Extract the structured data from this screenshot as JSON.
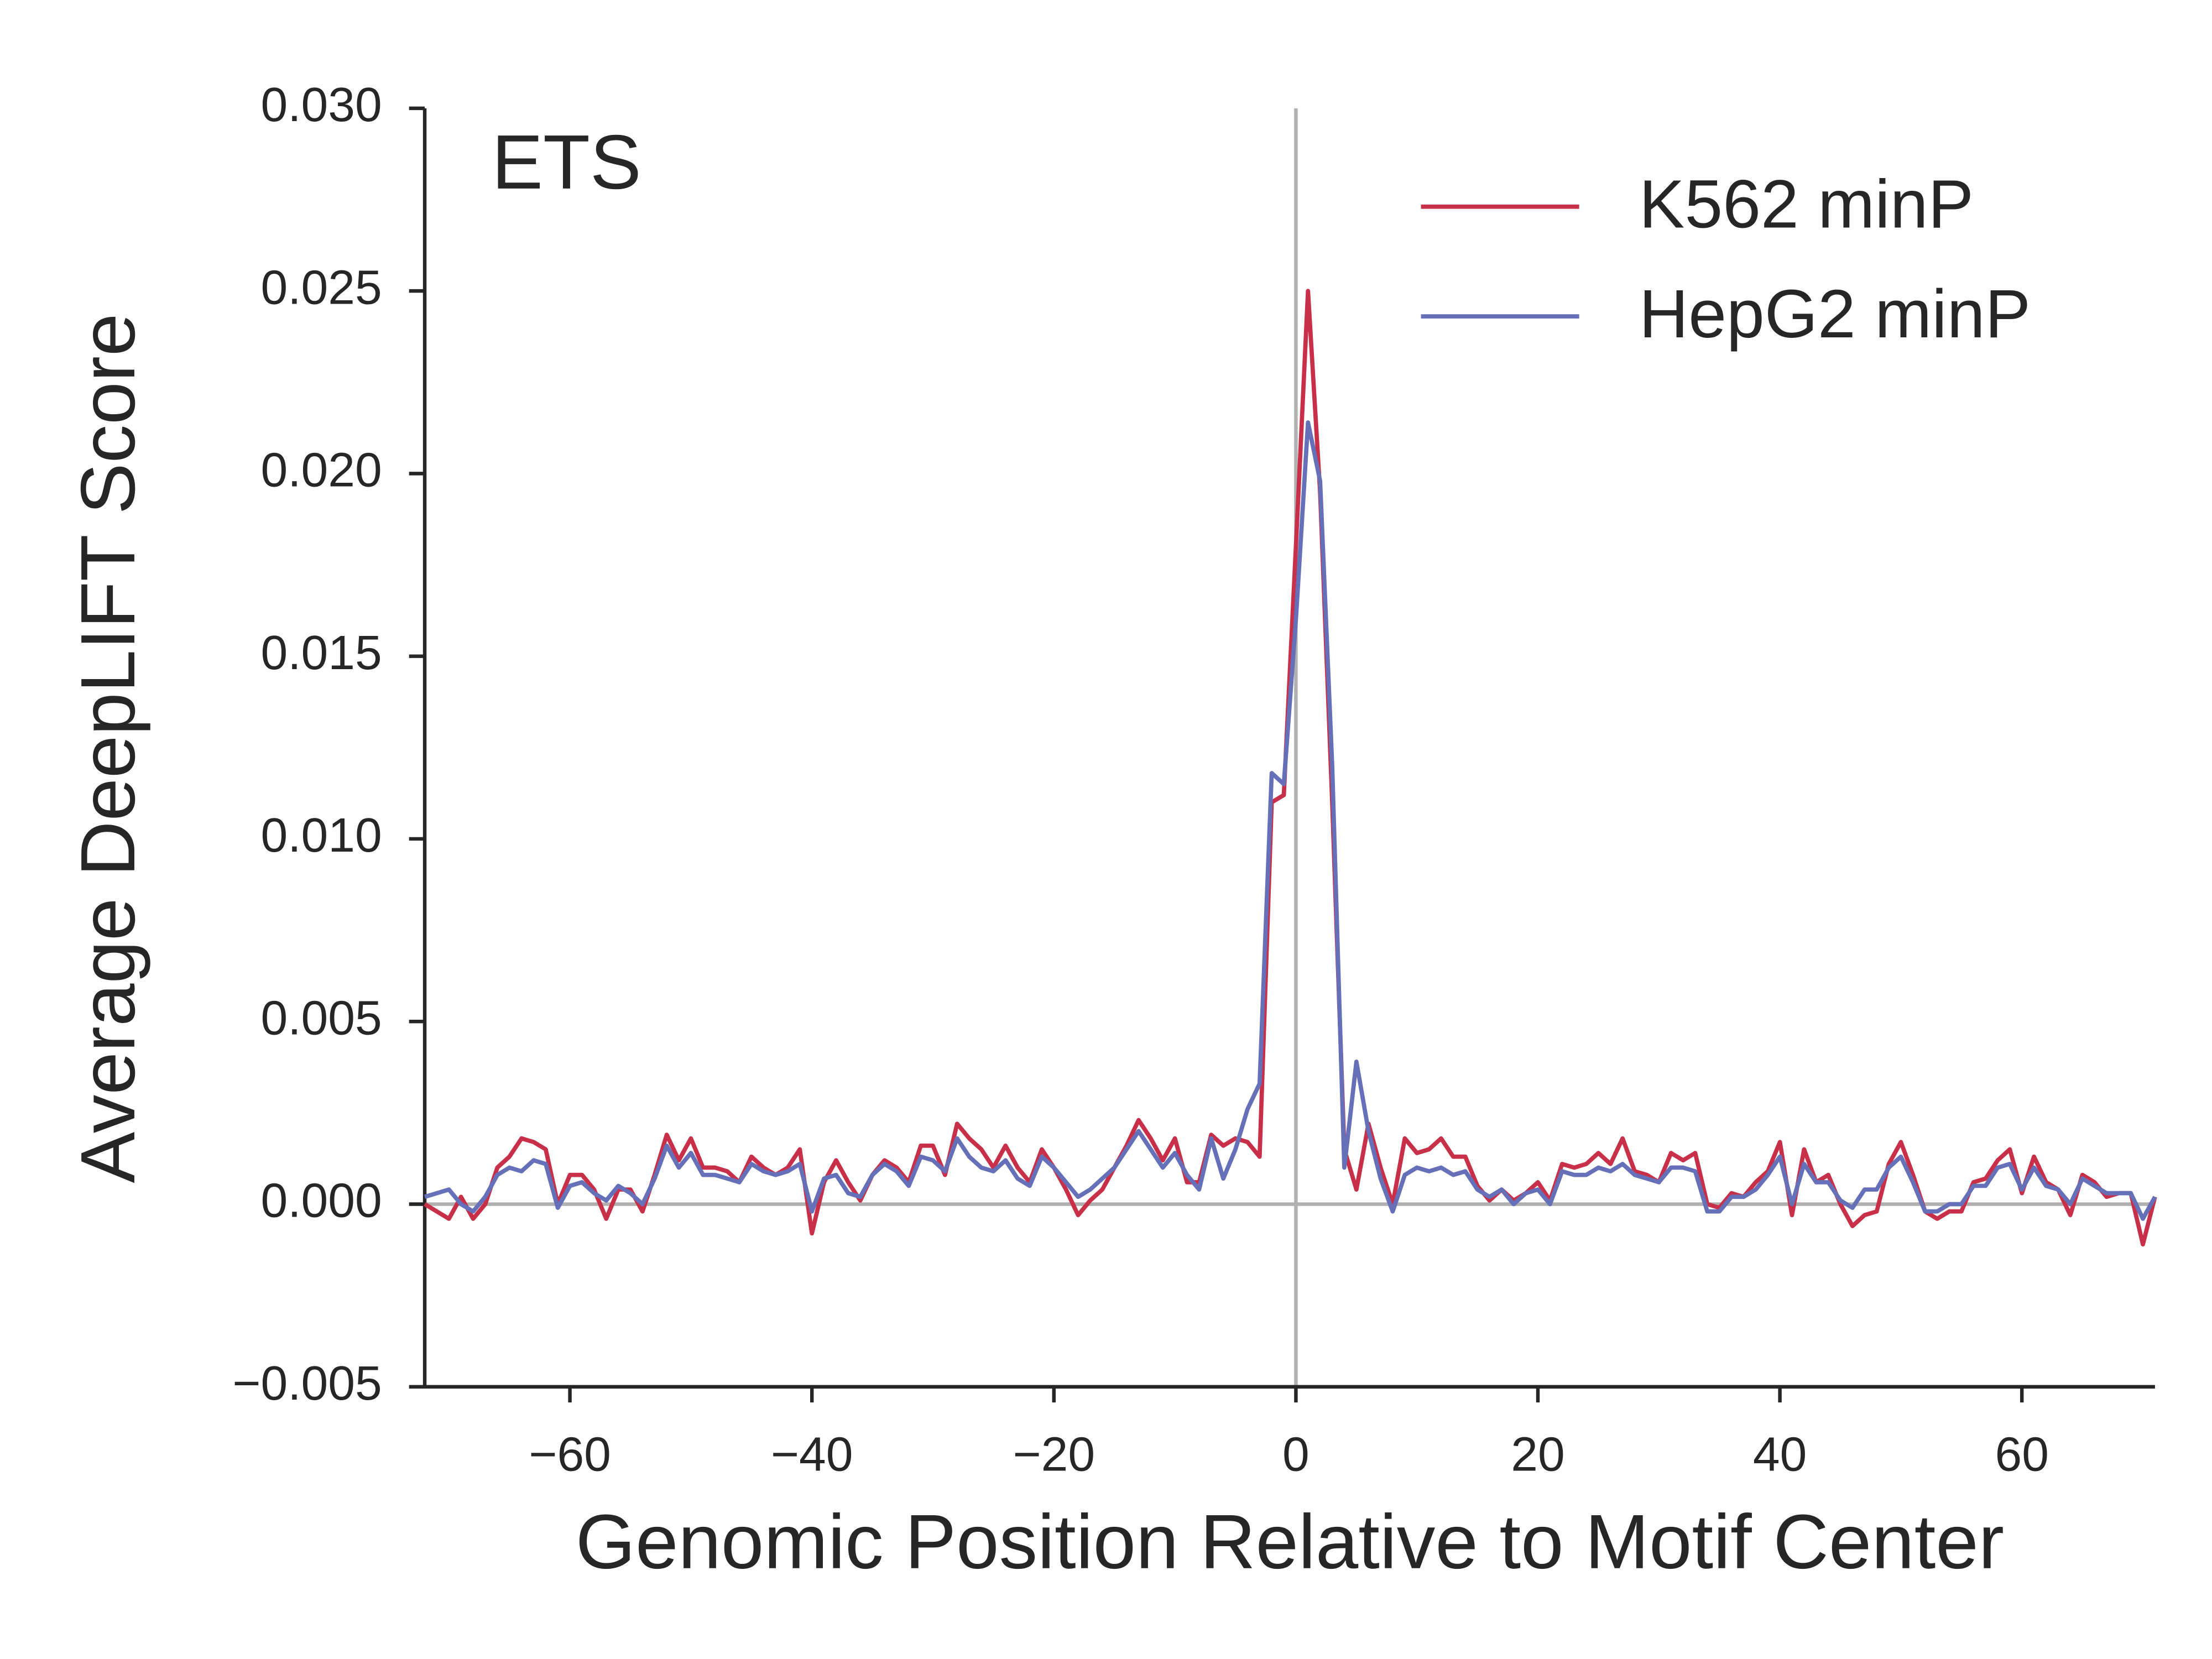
{
  "chart_data": {
    "type": "line",
    "annotation": "ETS",
    "x_label": "Genomic Position Relative to Motif Center",
    "y_label": "Average DeepLIFT Score",
    "x": [
      -72,
      -71,
      -70,
      -69,
      -68,
      -67,
      -66,
      -65,
      -64,
      -63,
      -62,
      -61,
      -60,
      -59,
      -58,
      -57,
      -56,
      -55,
      -54,
      -53,
      -52,
      -51,
      -50,
      -49,
      -48,
      -47,
      -46,
      -45,
      -44,
      -43,
      -42,
      -41,
      -40,
      -39,
      -38,
      -37,
      -36,
      -35,
      -34,
      -33,
      -32,
      -31,
      -30,
      -29,
      -28,
      -27,
      -26,
      -25,
      -24,
      -23,
      -22,
      -21,
      -20,
      -19,
      -18,
      -17,
      -16,
      -15,
      -14,
      -13,
      -12,
      -11,
      -10,
      -9,
      -8,
      -7,
      -6,
      -5,
      -4,
      -3,
      -2,
      -1,
      0,
      1,
      2,
      3,
      4,
      5,
      6,
      7,
      8,
      9,
      10,
      11,
      12,
      13,
      14,
      15,
      16,
      17,
      18,
      19,
      20,
      21,
      22,
      23,
      24,
      25,
      26,
      27,
      28,
      29,
      30,
      31,
      32,
      33,
      34,
      35,
      36,
      37,
      38,
      39,
      40,
      41,
      42,
      43,
      44,
      45,
      46,
      47,
      48,
      49,
      50,
      51,
      52,
      53,
      54,
      55,
      56,
      57,
      58,
      59,
      60,
      61,
      62,
      63,
      64,
      65,
      66,
      67,
      68,
      69,
      70,
      71
    ],
    "series": [
      {
        "name": "K562 minP",
        "color": "#c8304a",
        "values": [
          0.0,
          -0.0002,
          -0.0004,
          0.0002,
          -0.0004,
          0.0,
          0.001,
          0.0013,
          0.0018,
          0.0017,
          0.0015,
          0.0,
          0.0008,
          0.0008,
          0.0004,
          -0.0004,
          0.0004,
          0.0004,
          -0.0002,
          0.0008,
          0.0019,
          0.0012,
          0.0018,
          0.001,
          0.001,
          0.0009,
          0.0006,
          0.0013,
          0.001,
          0.0008,
          0.001,
          0.0015,
          -0.0008,
          0.0006,
          0.0012,
          0.0006,
          0.0001,
          0.0008,
          0.0012,
          0.001,
          0.0006,
          0.0016,
          0.0016,
          0.0008,
          0.0022,
          0.0018,
          0.0015,
          0.001,
          0.0016,
          0.001,
          0.0006,
          0.0015,
          0.001,
          0.0004,
          -0.0003,
          0.0001,
          0.0004,
          0.001,
          0.0016,
          0.0023,
          0.0018,
          0.0012,
          0.0018,
          0.0006,
          0.0006,
          0.0019,
          0.0016,
          0.0018,
          0.0017,
          0.0013,
          0.011,
          0.0112,
          0.018,
          0.025,
          0.0195,
          0.011,
          0.0015,
          0.0004,
          0.0022,
          0.001,
          0.0,
          0.0018,
          0.0014,
          0.0015,
          0.0018,
          0.0013,
          0.0013,
          0.0005,
          0.0001,
          0.0004,
          0.0001,
          0.0003,
          0.0006,
          0.0001,
          0.0011,
          0.001,
          0.0011,
          0.0014,
          0.0011,
          0.0018,
          0.0009,
          0.0008,
          0.0006,
          0.0014,
          0.0012,
          0.0014,
          0.0,
          -0.0001,
          0.0003,
          0.0002,
          0.0006,
          0.0009,
          0.0017,
          -0.0003,
          0.0015,
          0.0006,
          0.0008,
          0.0,
          -0.0006,
          -0.0003,
          -0.0002,
          0.0011,
          0.0017,
          0.0008,
          -0.0002,
          -0.0004,
          -0.0002,
          -0.0002,
          0.0006,
          0.0007,
          0.0012,
          0.0015,
          0.0003,
          0.0013,
          0.0006,
          0.0004,
          -0.0003,
          0.0008,
          0.0006,
          0.0002,
          0.0003,
          0.0003,
          -0.0011,
          0.0002
        ]
      },
      {
        "name": "HepG2 minP",
        "color": "#6670b8",
        "values": [
          0.0002,
          0.0003,
          0.0004,
          0.0,
          -0.0002,
          0.0002,
          0.0008,
          0.001,
          0.0009,
          0.0012,
          0.0011,
          -0.0001,
          0.0005,
          0.0006,
          0.0003,
          0.0001,
          0.0005,
          0.0003,
          0.0,
          0.0007,
          0.0016,
          0.001,
          0.0014,
          0.0008,
          0.0008,
          0.0007,
          0.0006,
          0.0011,
          0.0009,
          0.0008,
          0.0009,
          0.0011,
          -0.0002,
          0.0007,
          0.0008,
          0.0003,
          0.0002,
          0.0008,
          0.0011,
          0.0009,
          0.0005,
          0.0013,
          0.0012,
          0.0009,
          0.0018,
          0.0013,
          0.001,
          0.0009,
          0.0012,
          0.0007,
          0.0005,
          0.0013,
          0.001,
          0.0006,
          0.0002,
          0.0004,
          0.0007,
          0.001,
          0.0015,
          0.002,
          0.0015,
          0.001,
          0.0014,
          0.0008,
          0.0004,
          0.0018,
          0.0007,
          0.0015,
          0.0026,
          0.0033,
          0.0118,
          0.0115,
          0.016,
          0.0214,
          0.0198,
          0.012,
          0.001,
          0.0039,
          0.002,
          0.0007,
          -0.0002,
          0.0008,
          0.001,
          0.0009,
          0.001,
          0.0008,
          0.0009,
          0.0004,
          0.0002,
          0.0004,
          0.0,
          0.0003,
          0.0004,
          0.0,
          0.0009,
          0.0008,
          0.0008,
          0.001,
          0.0009,
          0.0011,
          0.0008,
          0.0007,
          0.0006,
          0.001,
          0.001,
          0.0009,
          -0.0002,
          -0.0002,
          0.0002,
          0.0002,
          0.0004,
          0.0008,
          0.0013,
          0.0,
          0.0011,
          0.0006,
          0.0006,
          0.0001,
          -0.0001,
          0.0004,
          0.0004,
          0.001,
          0.0013,
          0.0006,
          -0.0002,
          -0.0002,
          0.0,
          0.0,
          0.0005,
          0.0005,
          0.001,
          0.0011,
          0.0004,
          0.001,
          0.0005,
          0.0004,
          0.0,
          0.0007,
          0.0005,
          0.0003,
          0.0003,
          0.0003,
          -0.0004,
          0.0002
        ]
      }
    ],
    "xlim": [
      -72,
      71
    ],
    "ylim": [
      -0.005,
      0.03
    ],
    "xticks": [
      {
        "value": -60,
        "label": "−60"
      },
      {
        "value": -40,
        "label": "−40"
      },
      {
        "value": -20,
        "label": "−20"
      },
      0,
      20,
      40,
      60
    ],
    "yticks": [
      {
        "value": -0.005,
        "label": "−0.005"
      },
      {
        "value": 0,
        "label": "0.000"
      },
      {
        "value": 0.005,
        "label": "0.005"
      },
      {
        "value": 0.01,
        "label": "0.010"
      },
      {
        "value": 0.015,
        "label": "0.015"
      },
      {
        "value": 0.02,
        "label": "0.020"
      },
      {
        "value": 0.025,
        "label": "0.025"
      },
      {
        "value": 0.03,
        "label": "0.030"
      }
    ],
    "reference_lines": {
      "x": 0,
      "y": 0,
      "color": "#b0b0b0"
    },
    "legend": "upper right"
  }
}
